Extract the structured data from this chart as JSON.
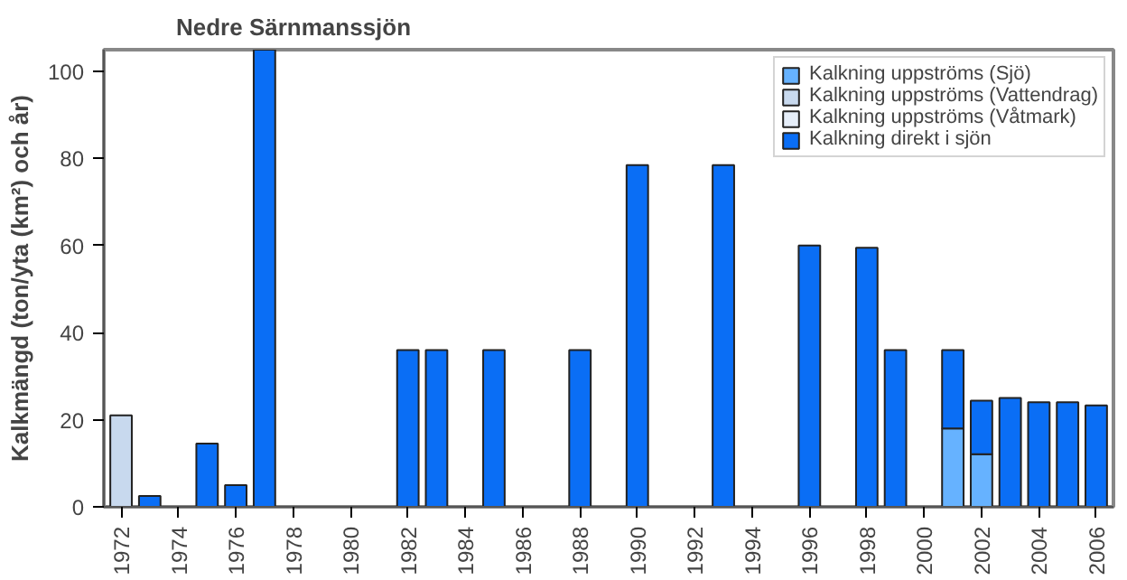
{
  "chart_data": {
    "type": "bar",
    "stacked": true,
    "title": "Nedre Särnmanssjön",
    "ylabel": "Kalkmängd (ton/yta (km²) och år)",
    "x": [
      1972,
      1973,
      1974,
      1975,
      1976,
      1977,
      1978,
      1979,
      1980,
      1981,
      1982,
      1983,
      1984,
      1985,
      1986,
      1987,
      1988,
      1989,
      1990,
      1991,
      1992,
      1993,
      1994,
      1995,
      1996,
      1997,
      1998,
      1999,
      2000,
      2001,
      2002,
      2003,
      2004,
      2005,
      2006
    ],
    "xlim": [
      1971.4,
      2006.6
    ],
    "xticks": [
      1972,
      1974,
      1976,
      1978,
      1980,
      1982,
      1984,
      1986,
      1988,
      1990,
      1992,
      1994,
      1996,
      1998,
      2000,
      2002,
      2004,
      2006
    ],
    "ylim": [
      0,
      105
    ],
    "yticks": [
      0,
      20,
      40,
      60,
      80,
      100
    ],
    "grid": false,
    "legend": "top right",
    "series": [
      {
        "name": "Kalkning uppströms (Sjö)",
        "color": "#66b2ff",
        "values": [
          null,
          null,
          null,
          null,
          null,
          null,
          null,
          null,
          null,
          null,
          null,
          null,
          null,
          null,
          null,
          null,
          null,
          null,
          null,
          null,
          null,
          null,
          null,
          null,
          null,
          null,
          null,
          null,
          null,
          18,
          12.1,
          null,
          null,
          null,
          null
        ]
      },
      {
        "name": "Kalkning uppströms (Vattendrag)",
        "color": "#c8d9ee",
        "values": [
          21,
          null,
          null,
          null,
          null,
          null,
          null,
          null,
          null,
          null,
          null,
          null,
          null,
          null,
          null,
          null,
          null,
          null,
          null,
          null,
          null,
          null,
          null,
          null,
          null,
          null,
          null,
          null,
          null,
          null,
          null,
          null,
          null,
          null,
          null
        ]
      },
      {
        "name": "Kalkning uppströms (Våtmark)",
        "color": "#e6eef9",
        "values": [
          null,
          null,
          null,
          null,
          null,
          null,
          null,
          null,
          null,
          null,
          null,
          null,
          null,
          null,
          null,
          null,
          null,
          null,
          null,
          null,
          null,
          null,
          null,
          null,
          null,
          null,
          null,
          null,
          null,
          null,
          null,
          null,
          null,
          null,
          null
        ]
      },
      {
        "name": "Kalkning direkt i sjön",
        "color": "#0a6ef5",
        "values": [
          null,
          2.5,
          null,
          14.5,
          5,
          105,
          null,
          null,
          null,
          null,
          36,
          36,
          null,
          36,
          null,
          null,
          36,
          null,
          78.5,
          null,
          null,
          78.5,
          null,
          null,
          60,
          null,
          59.5,
          36,
          null,
          18,
          12.3,
          25,
          24,
          24,
          23.3
        ]
      }
    ]
  }
}
